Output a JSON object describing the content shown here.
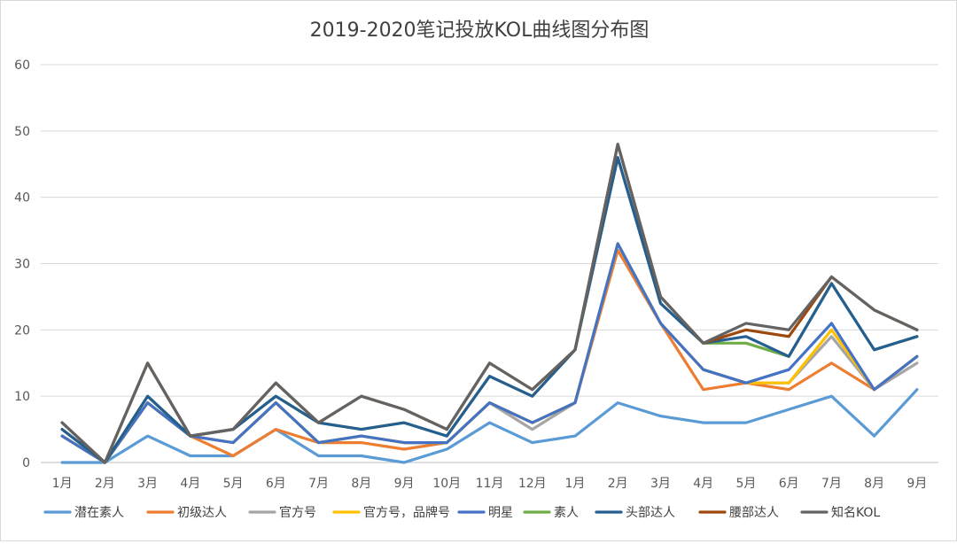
{
  "chart_data": {
    "type": "line",
    "title": "2019-2020笔记投放KOL曲线图分布图",
    "xlabel": "",
    "ylabel": "",
    "ylim": [
      0,
      60
    ],
    "yticks": [
      "0",
      "10",
      "20",
      "30",
      "40",
      "50",
      "60"
    ],
    "grid": true,
    "legend_position": "bottom",
    "categories": [
      "1月",
      "2月",
      "3月",
      "4月",
      "5月",
      "6月",
      "7月",
      "8月",
      "9月",
      "10月",
      "11月",
      "12月",
      "1月",
      "2月",
      "3月",
      "4月",
      "5月",
      "6月",
      "7月",
      "8月",
      "9月"
    ],
    "series": [
      {
        "name": "潜在素人",
        "color": "#5b9bd5",
        "values": [
          0,
          0,
          4,
          1,
          1,
          5,
          1,
          1,
          0,
          2,
          6,
          3,
          4,
          9,
          7,
          6,
          6,
          8,
          10,
          4,
          11
        ]
      },
      {
        "name": "初级达人",
        "color": "#ed7d31",
        "values": [
          4,
          0,
          9,
          4,
          1,
          5,
          3,
          3,
          2,
          3,
          9,
          6,
          9,
          32,
          21,
          11,
          12,
          11,
          15,
          11,
          16
        ]
      },
      {
        "name": "官方号",
        "color": "#a5a5a5",
        "values": [
          4,
          0,
          9,
          4,
          3,
          9,
          3,
          4,
          3,
          3,
          9,
          5,
          9,
          33,
          21,
          14,
          12,
          12,
          19,
          11,
          15
        ]
      },
      {
        "name": "官方号，品牌号",
        "color": "#ffc000",
        "values": [
          4,
          0,
          9,
          4,
          3,
          9,
          3,
          4,
          3,
          3,
          9,
          6,
          9,
          33,
          21,
          14,
          12,
          12,
          20,
          11,
          16
        ]
      },
      {
        "name": "明星",
        "color": "#4472c4",
        "values": [
          4,
          0,
          9,
          4,
          3,
          9,
          3,
          4,
          3,
          3,
          9,
          6,
          9,
          33,
          21,
          14,
          12,
          14,
          21,
          11,
          16
        ]
      },
      {
        "name": "素人",
        "color": "#70ad47",
        "values": [
          5,
          0,
          10,
          4,
          5,
          10,
          6,
          5,
          6,
          4,
          13,
          10,
          17,
          46,
          24,
          18,
          18,
          16,
          27,
          17,
          19
        ]
      },
      {
        "name": "头部达人",
        "color": "#255e91",
        "values": [
          5,
          0,
          10,
          4,
          5,
          10,
          6,
          5,
          6,
          4,
          13,
          10,
          17,
          46,
          24,
          18,
          19,
          16,
          27,
          17,
          19
        ]
      },
      {
        "name": "腰部达人",
        "color": "#9e480e",
        "values": [
          6,
          0,
          15,
          4,
          5,
          12,
          6,
          10,
          8,
          5,
          15,
          11,
          17,
          48,
          25,
          18,
          20,
          19,
          28,
          23,
          20
        ]
      },
      {
        "name": "知名KOL",
        "color": "#636363",
        "values": [
          6,
          0,
          15,
          4,
          5,
          12,
          6,
          10,
          8,
          5,
          15,
          11,
          17,
          48,
          25,
          18,
          21,
          20,
          28,
          23,
          20
        ]
      }
    ]
  }
}
